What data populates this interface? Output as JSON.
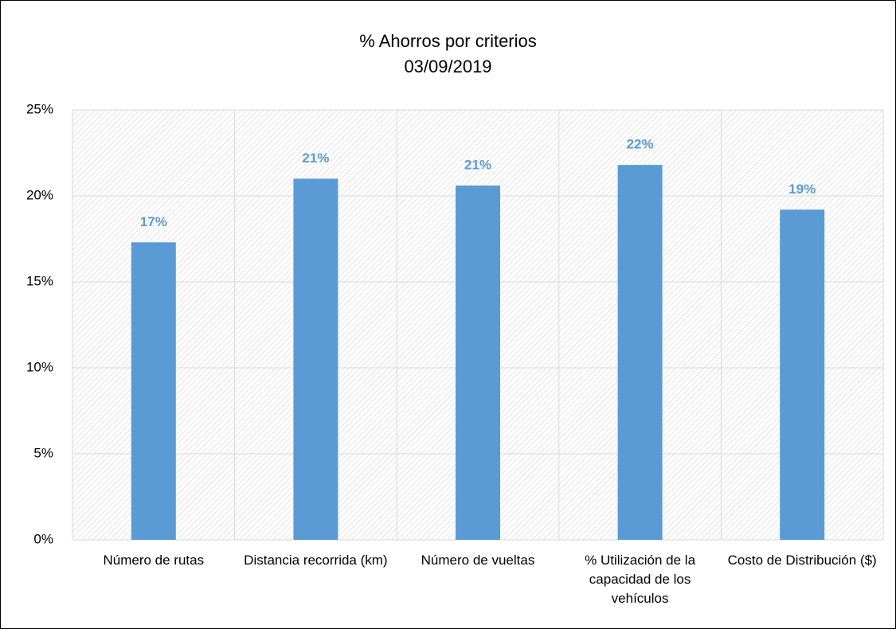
{
  "chart_data": {
    "type": "bar",
    "title": "% Ahorros por criterios",
    "subtitle": "03/09/2019",
    "categories": [
      "Número de rutas",
      "Distancia recorrida (km)",
      "Número de vueltas",
      "% Utilización de la capacidad de los vehículos",
      "Costo de Distribución ($)"
    ],
    "values": [
      17.3,
      21.0,
      20.6,
      21.8,
      19.2
    ],
    "value_labels": [
      "17%",
      "21%",
      "21%",
      "22%",
      "19%"
    ],
    "color": "#5b9bd5",
    "ylim": [
      0,
      25
    ],
    "yticks": [
      {
        "value": 0,
        "label": "0%"
      },
      {
        "value": 5,
        "label": "5%"
      },
      {
        "value": 10,
        "label": "10%"
      },
      {
        "value": 15,
        "label": "15%"
      },
      {
        "value": 20,
        "label": "20%"
      },
      {
        "value": 25,
        "label": "25%"
      }
    ],
    "grid": true
  }
}
